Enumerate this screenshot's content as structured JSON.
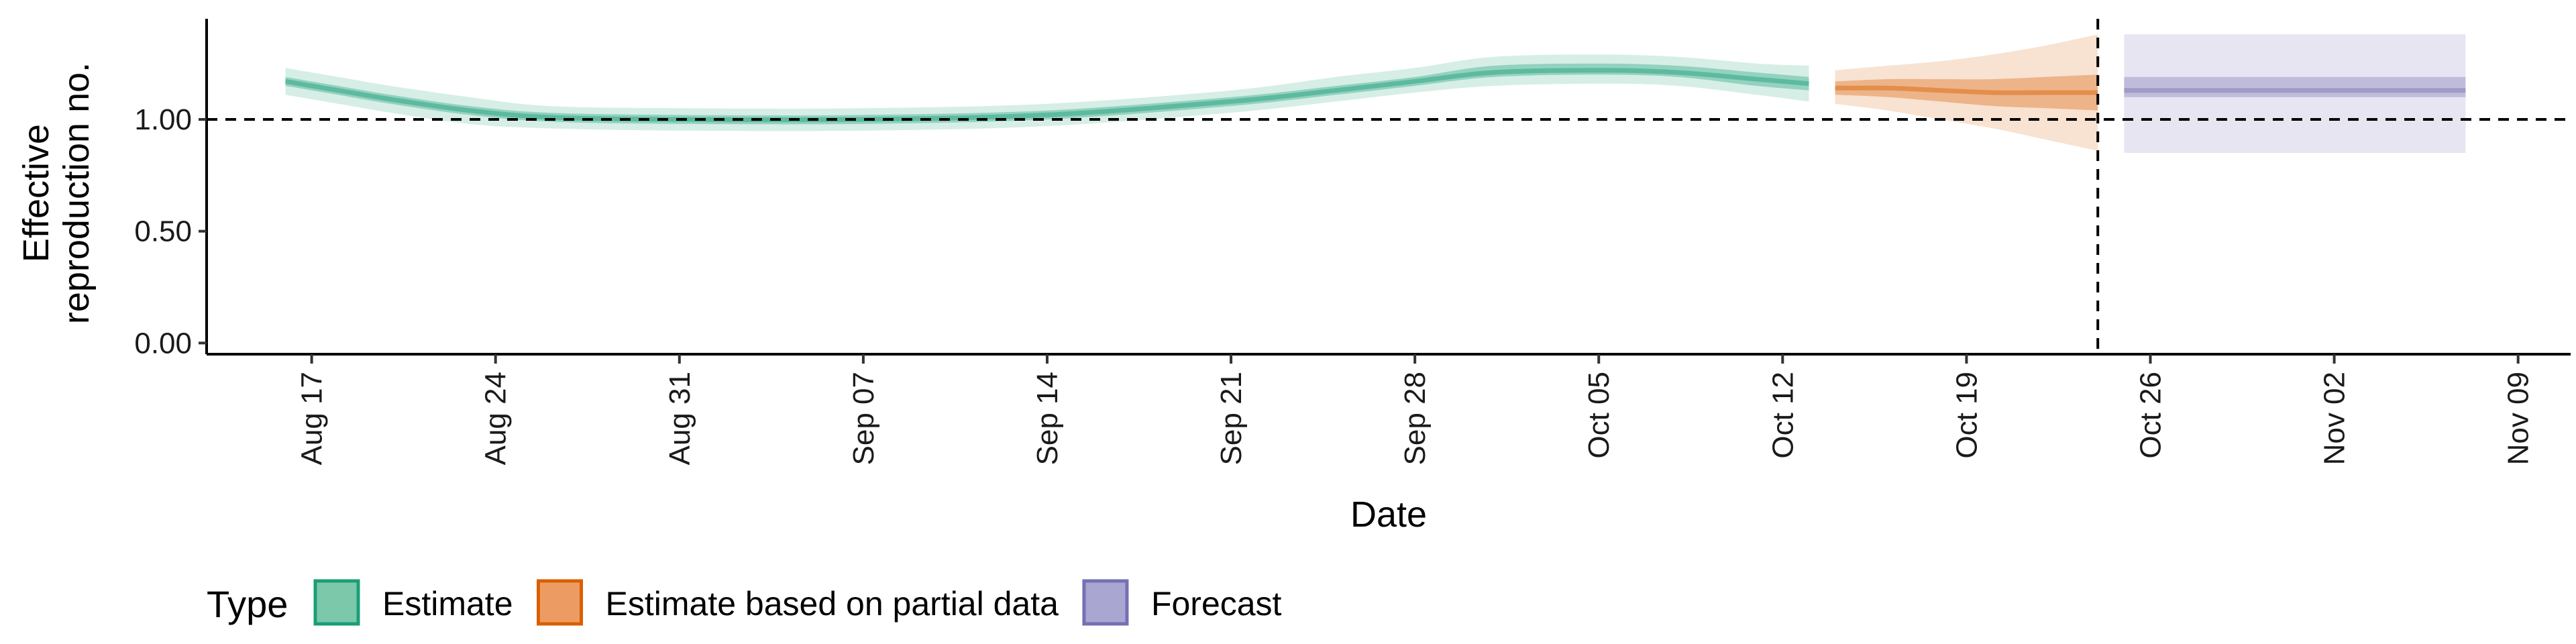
{
  "chart_data": {
    "type": "area",
    "xlabel": "Date",
    "ylabel_lines": [
      "Effective",
      "reproduction no."
    ],
    "y_ticks": [
      {
        "value": 0.0,
        "label": "0.00"
      },
      {
        "value": 0.5,
        "label": "0.50"
      },
      {
        "value": 1.0,
        "label": "1.00"
      }
    ],
    "x_ticks": [
      {
        "date": "2020-08-17",
        "label": "Aug 17"
      },
      {
        "date": "2020-08-24",
        "label": "Aug 24"
      },
      {
        "date": "2020-08-31",
        "label": "Aug 31"
      },
      {
        "date": "2020-09-07",
        "label": "Sep 07"
      },
      {
        "date": "2020-09-14",
        "label": "Sep 14"
      },
      {
        "date": "2020-09-21",
        "label": "Sep 21"
      },
      {
        "date": "2020-09-28",
        "label": "Sep 28"
      },
      {
        "date": "2020-10-05",
        "label": "Oct 05"
      },
      {
        "date": "2020-10-12",
        "label": "Oct 12"
      },
      {
        "date": "2020-10-19",
        "label": "Oct 19"
      },
      {
        "date": "2020-10-26",
        "label": "Oct 26"
      },
      {
        "date": "2020-11-02",
        "label": "Nov 02"
      },
      {
        "date": "2020-11-09",
        "label": "Nov 09"
      }
    ],
    "xlim": [
      "2020-08-13",
      "2020-11-11"
    ],
    "ylim": [
      -0.05,
      1.45
    ],
    "reference_line": {
      "y": 1.0,
      "style": "dashed"
    },
    "vertical_line": {
      "date": "2020-10-24",
      "style": "dashed"
    },
    "legend": {
      "title": "Type",
      "position": "bottom-left",
      "items": [
        {
          "label": "Estimate",
          "fill": "#7cc8ab",
          "stroke": "#1b9e77"
        },
        {
          "label": "Estimate based on partial data",
          "fill": "#ec9c63",
          "stroke": "#d95f02"
        },
        {
          "label": "Forecast",
          "fill": "#aaa6d2",
          "stroke": "#7570b3"
        }
      ]
    },
    "series": [
      {
        "name": "Estimate",
        "color": "#1b9e77",
        "points": [
          {
            "x": "2020-08-16",
            "median": 1.17,
            "lo50": 1.15,
            "hi50": 1.19,
            "lo90": 1.11,
            "hi90": 1.23
          },
          {
            "x": "2020-08-18",
            "median": 1.13,
            "lo50": 1.11,
            "hi50": 1.15,
            "lo90": 1.07,
            "hi90": 1.19
          },
          {
            "x": "2020-08-20",
            "median": 1.09,
            "lo50": 1.07,
            "hi50": 1.11,
            "lo90": 1.03,
            "hi90": 1.15
          },
          {
            "x": "2020-08-23",
            "median": 1.04,
            "lo50": 1.02,
            "hi50": 1.06,
            "lo90": 0.98,
            "hi90": 1.1
          },
          {
            "x": "2020-08-26",
            "median": 1.01,
            "lo50": 0.99,
            "hi50": 1.03,
            "lo90": 0.96,
            "hi90": 1.06
          },
          {
            "x": "2020-08-31",
            "median": 1.0,
            "lo50": 0.98,
            "hi50": 1.02,
            "lo90": 0.95,
            "hi90": 1.05
          },
          {
            "x": "2020-09-07",
            "median": 1.0,
            "lo50": 0.98,
            "hi50": 1.02,
            "lo90": 0.95,
            "hi90": 1.05
          },
          {
            "x": "2020-09-14",
            "median": 1.02,
            "lo50": 1.0,
            "hi50": 1.04,
            "lo90": 0.97,
            "hi90": 1.07
          },
          {
            "x": "2020-09-21",
            "median": 1.08,
            "lo50": 1.06,
            "hi50": 1.1,
            "lo90": 1.03,
            "hi90": 1.13
          },
          {
            "x": "2020-09-25",
            "median": 1.13,
            "lo50": 1.11,
            "hi50": 1.15,
            "lo90": 1.08,
            "hi90": 1.19
          },
          {
            "x": "2020-09-28",
            "median": 1.17,
            "lo50": 1.15,
            "hi50": 1.19,
            "lo90": 1.12,
            "hi90": 1.23
          },
          {
            "x": "2020-10-01",
            "median": 1.21,
            "lo50": 1.19,
            "hi50": 1.24,
            "lo90": 1.15,
            "hi90": 1.28
          },
          {
            "x": "2020-10-05",
            "median": 1.22,
            "lo50": 1.2,
            "hi50": 1.25,
            "lo90": 1.16,
            "hi90": 1.29
          },
          {
            "x": "2020-10-08",
            "median": 1.21,
            "lo50": 1.19,
            "hi50": 1.24,
            "lo90": 1.15,
            "hi90": 1.28
          },
          {
            "x": "2020-10-11",
            "median": 1.18,
            "lo50": 1.15,
            "hi50": 1.21,
            "lo90": 1.11,
            "hi90": 1.25
          },
          {
            "x": "2020-10-13",
            "median": 1.16,
            "lo50": 1.13,
            "hi50": 1.19,
            "lo90": 1.08,
            "hi90": 1.24
          }
        ]
      },
      {
        "name": "Estimate based on partial data",
        "color": "#d95f02",
        "points": [
          {
            "x": "2020-10-14",
            "median": 1.14,
            "lo50": 1.11,
            "hi50": 1.17,
            "lo90": 1.07,
            "hi90": 1.22
          },
          {
            "x": "2020-10-16",
            "median": 1.14,
            "lo50": 1.1,
            "hi50": 1.18,
            "lo90": 1.04,
            "hi90": 1.24
          },
          {
            "x": "2020-10-18",
            "median": 1.13,
            "lo50": 1.08,
            "hi50": 1.18,
            "lo90": 1.0,
            "hi90": 1.26
          },
          {
            "x": "2020-10-20",
            "median": 1.12,
            "lo50": 1.06,
            "hi50": 1.18,
            "lo90": 0.96,
            "hi90": 1.29
          },
          {
            "x": "2020-10-22",
            "median": 1.12,
            "lo50": 1.05,
            "hi50": 1.19,
            "lo90": 0.91,
            "hi90": 1.33
          },
          {
            "x": "2020-10-24",
            "median": 1.12,
            "lo50": 1.04,
            "hi50": 1.2,
            "lo90": 0.86,
            "hi90": 1.38
          }
        ]
      },
      {
        "name": "Forecast",
        "color": "#7570b3",
        "points": [
          {
            "x": "2020-10-25",
            "median": 1.13,
            "lo50": 1.1,
            "hi50": 1.19,
            "lo90": 0.85,
            "hi90": 1.38
          },
          {
            "x": "2020-11-07",
            "median": 1.13,
            "lo50": 1.1,
            "hi50": 1.19,
            "lo90": 0.85,
            "hi90": 1.38
          }
        ]
      }
    ]
  }
}
